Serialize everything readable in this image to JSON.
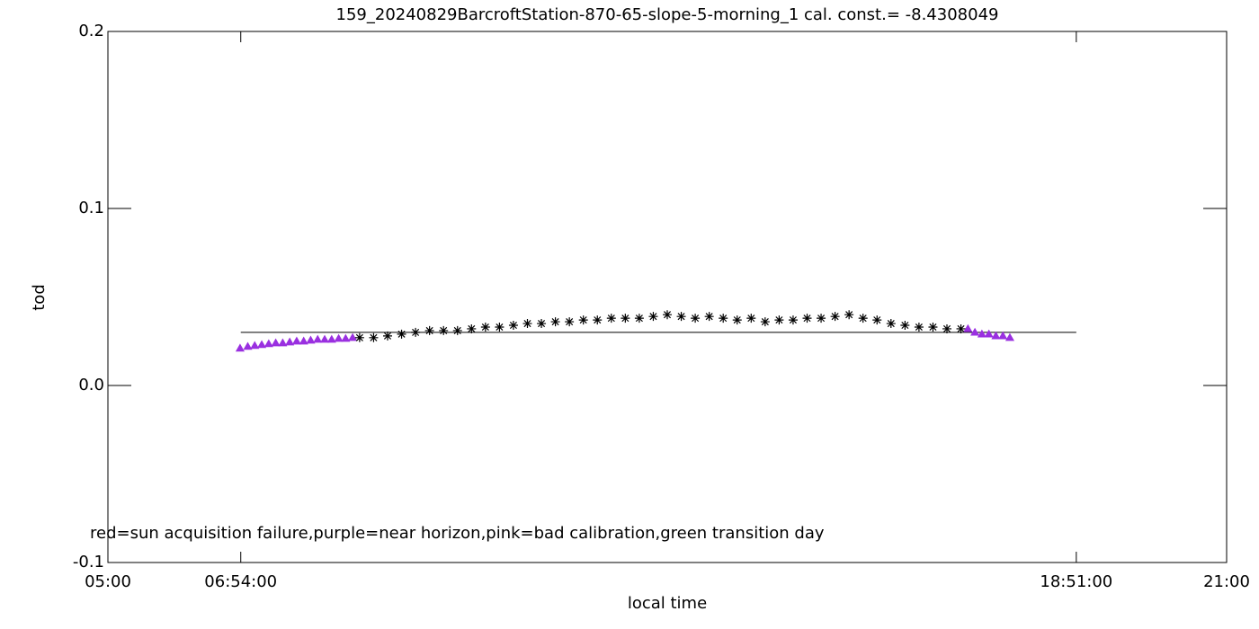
{
  "chart_data": {
    "type": "scatter",
    "title": "159_20240829BarcroftStation-870-65-slope-5-morning_1 cal. const.= -8.4308049",
    "x_label": "local time",
    "y_label": "tod",
    "annotation": "red=sun acquisition failure,purple=near horizon,pink=bad calibration,green transition day",
    "xlim": [
      5,
      21
    ],
    "xticks": [
      {
        "value": 5,
        "label": "05:00"
      },
      {
        "value": 6.9,
        "label": "06:54:00"
      },
      {
        "value": 18.85,
        "label": "18:51:00"
      },
      {
        "value": 21,
        "label": "21:00"
      }
    ],
    "ylim": [
      -0.1,
      0.2
    ],
    "yticks": [
      -0.1,
      {
        "value": 0,
        "label": "0.0"
      },
      0.1,
      0.2
    ],
    "reference_line": {
      "x": [
        6.9,
        18.85
      ],
      "value": 0.03,
      "color": "#000000"
    },
    "series": [
      {
        "color": "#9a30e0",
        "marker": "triangle",
        "x": [
          6.89,
          7.0,
          7.1,
          7.2,
          7.3,
          7.4,
          7.5,
          7.6,
          7.7,
          7.8,
          7.9,
          8.0,
          8.1,
          8.2,
          8.3,
          8.4,
          8.5
        ],
        "values": [
          0.021,
          0.022,
          0.0225,
          0.023,
          0.0235,
          0.024,
          0.024,
          0.0245,
          0.025,
          0.025,
          0.0255,
          0.026,
          0.026,
          0.026,
          0.0265,
          0.0265,
          0.027
        ]
      },
      {
        "color": "#000000",
        "marker": "asterisk",
        "x": [
          8.6,
          8.8,
          9.0,
          9.2,
          9.4,
          9.6,
          9.8,
          10.0,
          10.2,
          10.4,
          10.6,
          10.8,
          11.0,
          11.2,
          11.4,
          11.6,
          11.8,
          12.0,
          12.2,
          12.4,
          12.6,
          12.8,
          13.0,
          13.2,
          13.4,
          13.6,
          13.8,
          14.0,
          14.2,
          14.4,
          14.6,
          14.8,
          15.0,
          15.2,
          15.4,
          15.6,
          15.8,
          16.0,
          16.2,
          16.4,
          16.6,
          16.8,
          17.0,
          17.2
        ],
        "values": [
          0.027,
          0.027,
          0.028,
          0.029,
          0.03,
          0.031,
          0.031,
          0.031,
          0.032,
          0.033,
          0.033,
          0.034,
          0.035,
          0.035,
          0.036,
          0.036,
          0.037,
          0.037,
          0.038,
          0.038,
          0.038,
          0.039,
          0.04,
          0.039,
          0.038,
          0.039,
          0.038,
          0.037,
          0.038,
          0.036,
          0.037,
          0.037,
          0.038,
          0.038,
          0.039,
          0.04,
          0.038,
          0.037,
          0.035,
          0.034,
          0.033,
          0.033,
          0.032,
          0.032
        ]
      },
      {
        "color": "#9a30e0",
        "marker": "triangle",
        "x": [
          17.3,
          17.4,
          17.5,
          17.6,
          17.7,
          17.8,
          17.9
        ],
        "values": [
          0.032,
          0.03,
          0.029,
          0.029,
          0.028,
          0.028,
          0.027
        ]
      }
    ]
  }
}
